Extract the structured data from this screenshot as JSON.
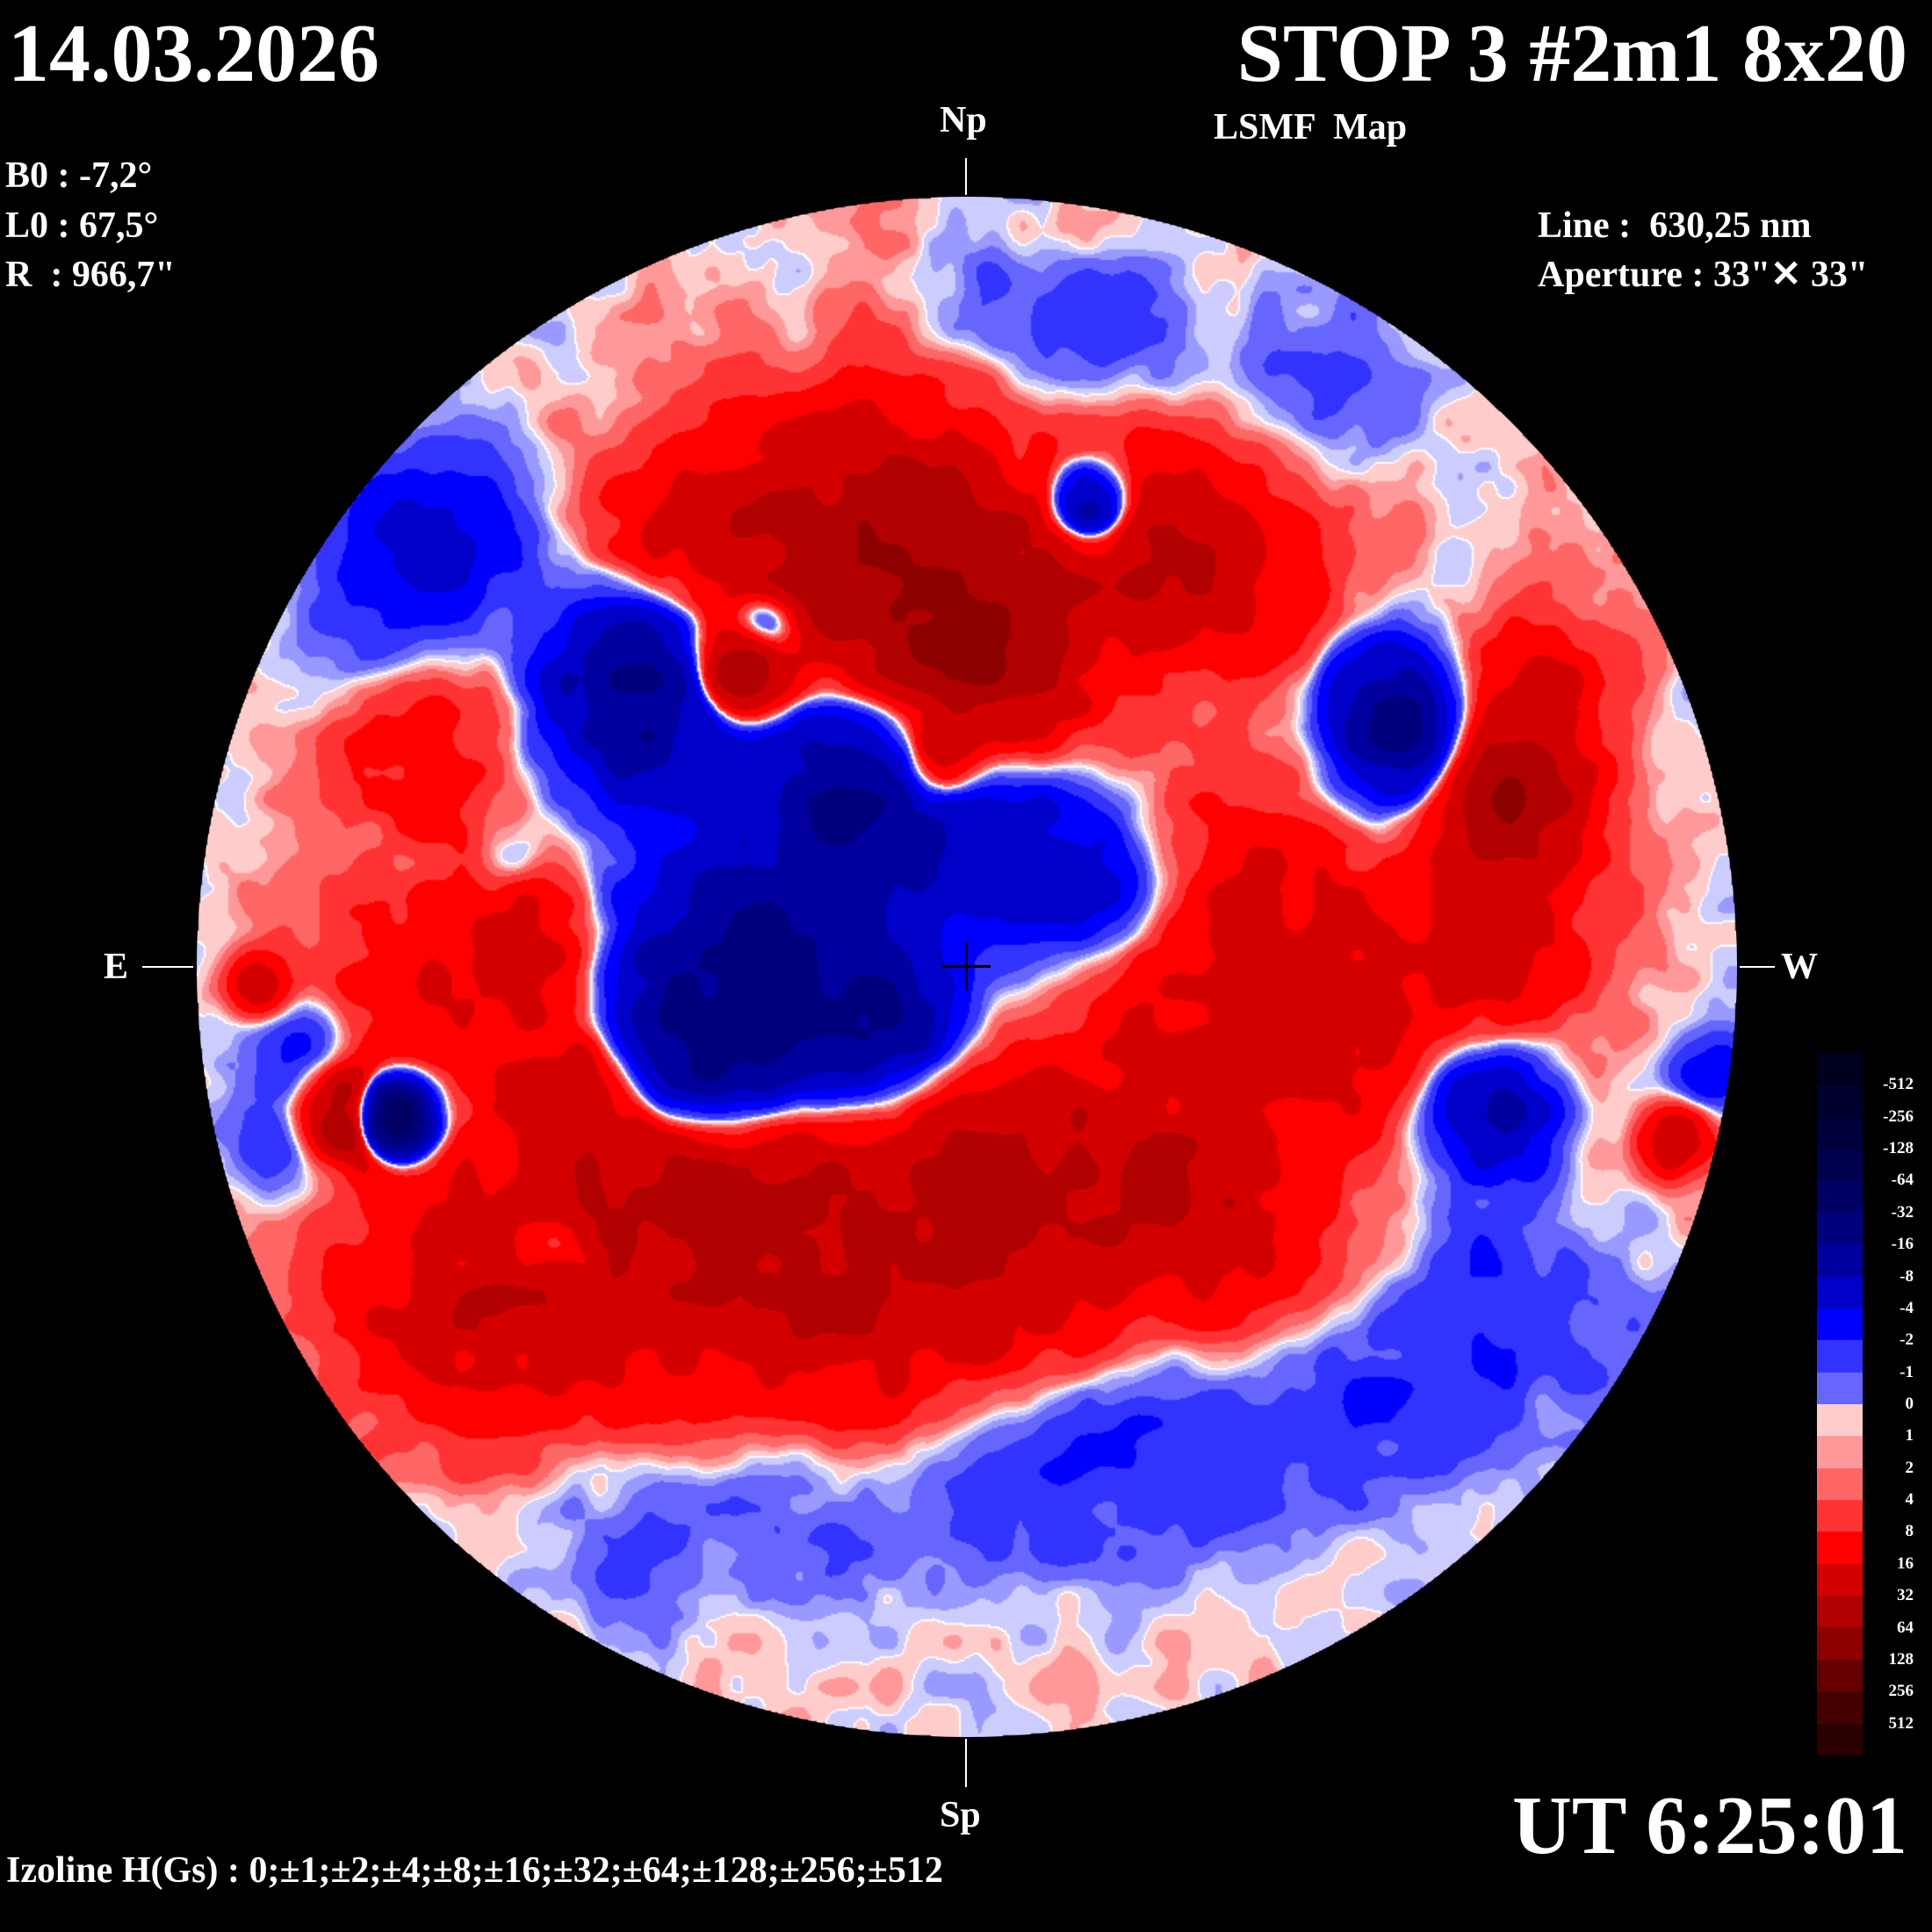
{
  "header": {
    "date": "14.03.2026",
    "title": "STOP 3 #2m1 8x20",
    "subtitle": "LSMF  Map"
  },
  "params": {
    "b0": "B0 : -7,2°",
    "l0": "L0 : 67,5°",
    "r": "R  : 966,7\"",
    "line": "Line :  630,25 nm",
    "aperture": "Aperture : 33\"✕ 33\""
  },
  "orientation": {
    "north": "Np",
    "south": "Sp",
    "east": "E",
    "west": "W"
  },
  "footer": {
    "time": "UT 6:25:01",
    "izoline": "Izoline H(Gs) : 0;±1;±2;±4;±8;±16;±32;±64;±128;±256;±512"
  },
  "colorbar": {
    "labels": [
      "-512",
      "-256",
      "-128",
      "-64",
      "-32",
      "-16",
      "-8",
      "-4",
      "-2",
      "-1",
      "0",
      "1",
      "2",
      "4",
      "8",
      "16",
      "32",
      "64",
      "128",
      "256",
      "512"
    ],
    "colors": [
      "#00001e",
      "#00002c",
      "#00003c",
      "#00004e",
      "#000064",
      "#00007e",
      "#00009e",
      "#0000c8",
      "#0000ff",
      "#3333ff",
      "#6666ff",
      "#ccccff",
      "#ffcccc",
      "#ff9999",
      "#ff6666",
      "#ff3333",
      "#ff0000",
      "#d40000",
      "#b00000",
      "#8c0000",
      "#660000",
      "#440000",
      "#2a0000"
    ]
  },
  "map_colors": {
    "negative": [
      "#ccccff",
      "#9999ff",
      "#6666ff",
      "#3333ff",
      "#0000ff",
      "#0000c8",
      "#00009e",
      "#00007e",
      "#000064",
      "#00004e",
      "#00003c"
    ],
    "positive": [
      "#ffcccc",
      "#ff9999",
      "#ff6666",
      "#ff3333",
      "#ff0000",
      "#d40000",
      "#b00000",
      "#8c0000",
      "#660000",
      "#440000",
      "#2a0000"
    ],
    "zero_line": "#ffffff"
  }
}
